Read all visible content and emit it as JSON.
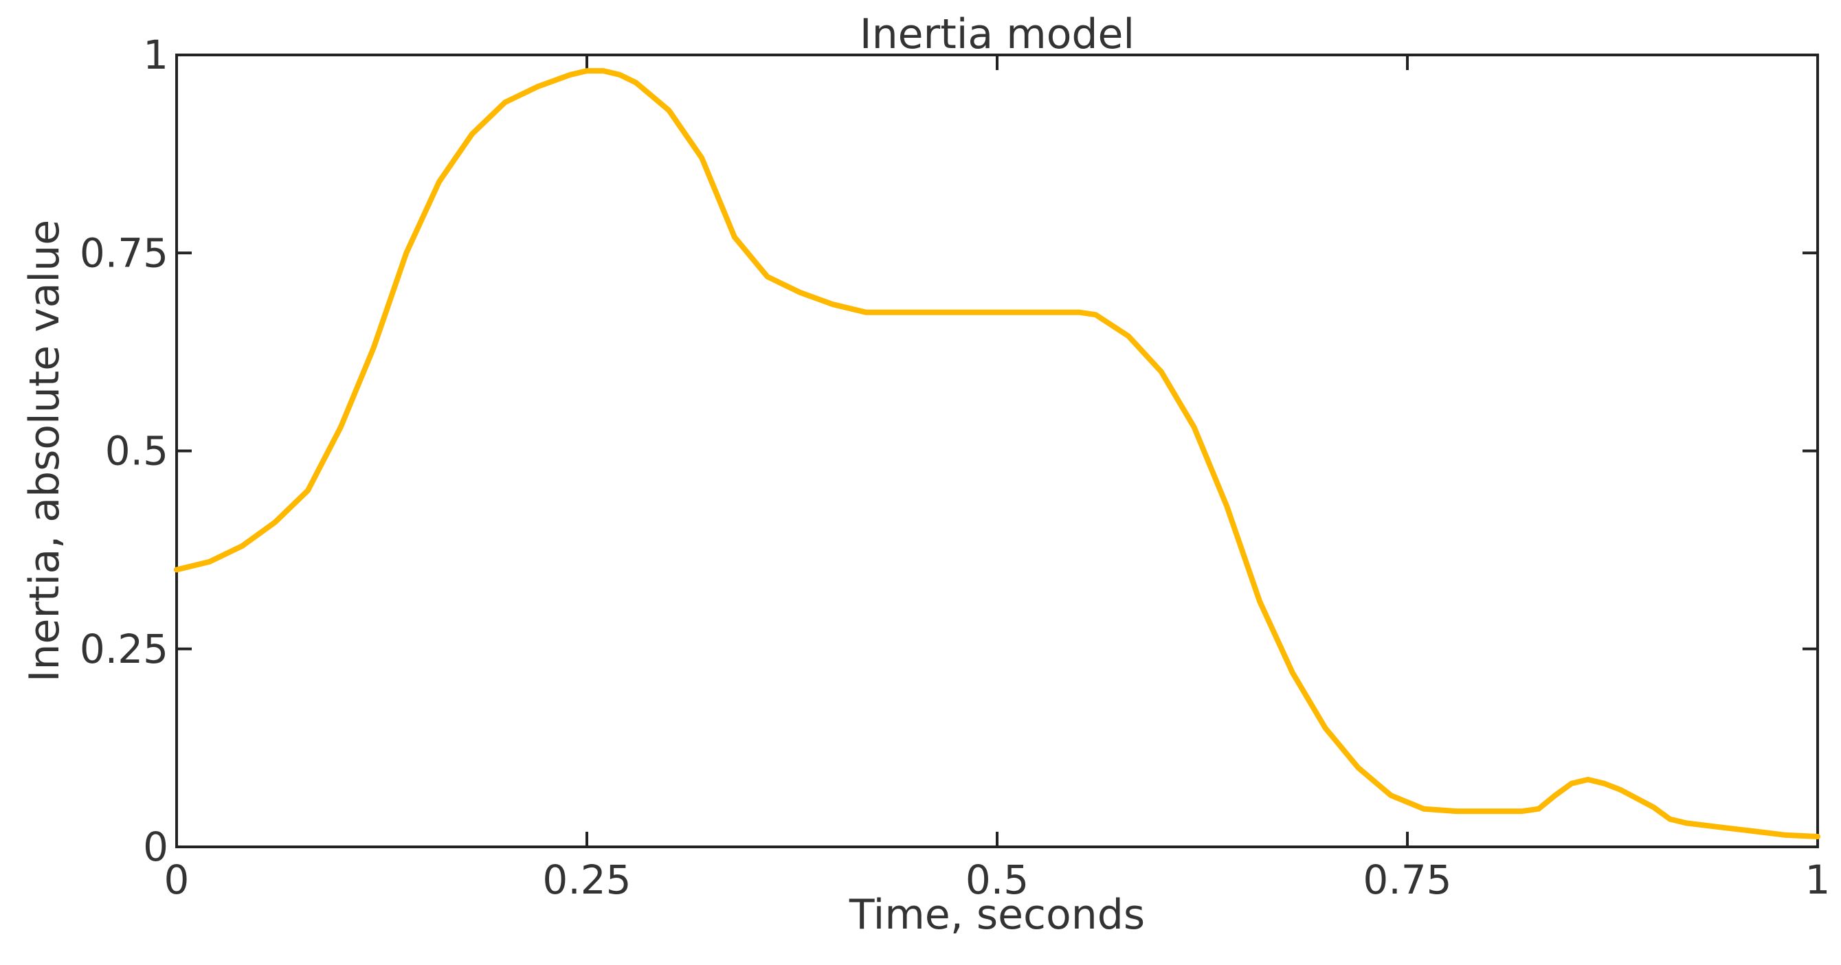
{
  "chart_data": {
    "type": "line",
    "title": "Inertia model",
    "xlabel": "Time, seconds",
    "ylabel": "Inertia, absolute value",
    "xlim": [
      0,
      1
    ],
    "ylim": [
      0,
      1
    ],
    "x_ticks": [
      0,
      0.25,
      0.5,
      0.75,
      1
    ],
    "x_tick_labels": [
      "0",
      "0.25",
      "0.5",
      "0.75",
      "1"
    ],
    "y_ticks": [
      0,
      0.25,
      0.5,
      0.75,
      1
    ],
    "y_tick_labels": [
      "0",
      "0.25",
      "0.5",
      "0.75",
      "1"
    ],
    "grid": false,
    "line_color": "#FFB800",
    "series": [
      {
        "x": [
          0,
          0.02,
          0.04,
          0.06,
          0.08,
          0.1,
          0.12,
          0.14,
          0.16,
          0.18,
          0.2,
          0.22,
          0.24,
          0.25,
          0.26,
          0.27,
          0.28,
          0.3,
          0.32,
          0.34,
          0.36,
          0.38,
          0.4,
          0.42,
          0.45,
          0.5,
          0.55,
          0.56,
          0.58,
          0.6,
          0.62,
          0.64,
          0.66,
          0.68,
          0.7,
          0.72,
          0.74,
          0.76,
          0.78,
          0.8,
          0.82,
          0.83,
          0.84,
          0.85,
          0.86,
          0.87,
          0.88,
          0.9,
          0.91,
          0.92,
          0.94,
          0.96,
          0.98,
          1.0
        ],
        "y": [
          0.35,
          0.36,
          0.38,
          0.41,
          0.45,
          0.53,
          0.63,
          0.75,
          0.84,
          0.9,
          0.94,
          0.96,
          0.975,
          0.98,
          0.98,
          0.975,
          0.965,
          0.93,
          0.87,
          0.77,
          0.72,
          0.7,
          0.685,
          0.675,
          0.675,
          0.675,
          0.675,
          0.672,
          0.645,
          0.6,
          0.53,
          0.43,
          0.31,
          0.22,
          0.15,
          0.1,
          0.065,
          0.048,
          0.045,
          0.045,
          0.045,
          0.048,
          0.065,
          0.08,
          0.085,
          0.08,
          0.072,
          0.05,
          0.035,
          0.03,
          0.025,
          0.02,
          0.015,
          0.013
        ]
      }
    ]
  }
}
